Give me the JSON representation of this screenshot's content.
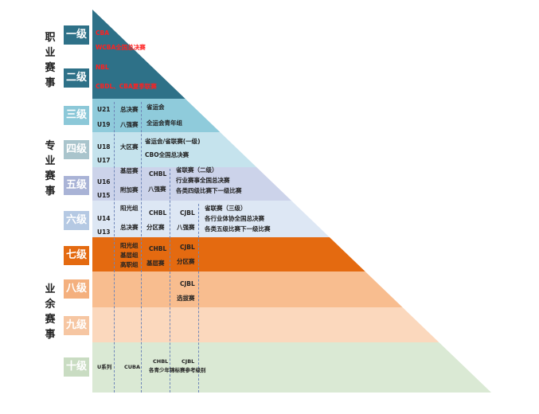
{
  "categories": {
    "professional": "职\n业\n赛\n事",
    "specialized": "专\n业\n赛\n事",
    "amateur": "业\n余\n赛\n事"
  },
  "levels": [
    "一级",
    "二级",
    "三级",
    "四级",
    "五级",
    "六级",
    "七级",
    "八级",
    "九级",
    "十级"
  ],
  "level_colors": [
    "#2e7188",
    "#2e7188",
    "#8fcbdb",
    "#c5e3ed",
    "#ccd3ea",
    "#dde7f4",
    "#e46a10",
    "#f8bd8f",
    "#fbd8bd",
    "#dae9d4"
  ],
  "level_label_colors": [
    "#2e7188",
    "#2e7188",
    "#8cc8d8",
    "#a9c4cc",
    "#a9b3d6",
    "#b5c9e3",
    "#e46a10",
    "#f4b07e",
    "#f6c6a2",
    "#c9dcc2"
  ],
  "cells": {
    "l1_cba": "CBA",
    "l1_wcba": "WCBA全国总决赛",
    "l2_nbl": "NBL",
    "l2_cbdl": "CBDL、CBA夏季联赛",
    "l3_u21": "U21",
    "l3_u19": "U19",
    "l3_final": "总决赛",
    "l3_top8": "八强赛",
    "l3_provgames": "省运会",
    "l3_nationalyouth": "全运会青年组",
    "l4_u18": "U18",
    "l4_u17": "U17",
    "l4_region": "大区赛",
    "l4_prov": "省运会/省联赛(一级)",
    "l4_cbo": "CBO全国总决赛",
    "l5_u16": "U16",
    "l5_u15": "U15",
    "l5_base": "基层赛",
    "l5_extra": "附加赛",
    "l5_chbl": "CHBL",
    "l5_top8": "八强赛",
    "l5_prov2": "省联赛（二级）",
    "l5_industry": "行业赛事全国总决赛",
    "l5_sports": "各类四级比赛下一级比赛",
    "l6_u14": "U14",
    "l6_u13": "U13",
    "l6_sunshine": "阳光组",
    "l6_final": "总决赛",
    "l6_chbl": "CHBL",
    "l6_division": "分区赛",
    "l6_cjbl": "CJBL",
    "l6_top8": "八强赛",
    "l6_prov3": "省联赛（三级）",
    "l6_industry": "各行业体协全国总决赛",
    "l6_sports": "各类五级比赛下一级比赛",
    "l7_sunshine": "阳光组",
    "l7_base": "基层组",
    "l7_senior": "高职组",
    "l7_chbl": "CHBL",
    "l7_base2": "基层赛",
    "l7_cjbl": "CJBL",
    "l7_division": "分区赛",
    "l8_cjbl": "CJBL",
    "l8_select": "选拔赛",
    "l10_u": "U系列",
    "l10_cuba": "CUBA",
    "l10_chbl": "CHBL",
    "l10_cjbl": "CJBL",
    "l10_youth": "各青少年锦标赛参考级别"
  }
}
